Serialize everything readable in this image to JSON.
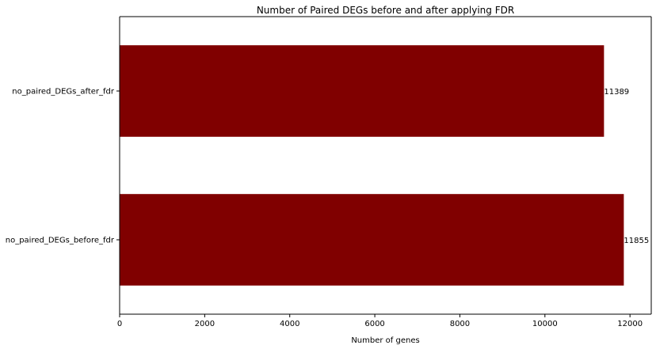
{
  "chart_data": {
    "type": "bar",
    "orientation": "horizontal",
    "title": "Number of Paired DEGs before and after applying FDR",
    "xlabel": "Number of genes",
    "ylabel": "",
    "categories": [
      "no_paired_DEGs_before_fdr",
      "no_paired_DEGs_after_fdr"
    ],
    "values": [
      11855,
      11389
    ],
    "data_labels": [
      "11855",
      "11389"
    ],
    "xlim": [
      0,
      12500
    ],
    "xticks": [
      0,
      2000,
      4000,
      6000,
      8000,
      10000,
      12000
    ],
    "xtick_labels": [
      "0",
      "2000",
      "4000",
      "6000",
      "8000",
      "10000",
      "12000"
    ],
    "grid": false,
    "bar_color": "#800000"
  }
}
